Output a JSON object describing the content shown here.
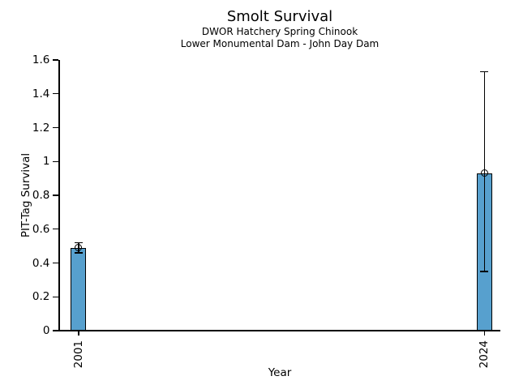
{
  "chart_data": {
    "type": "bar",
    "title": "Smolt Survival",
    "subtitle": [
      "DWOR Hatchery Spring Chinook",
      "Lower Monumental Dam - John Day Dam"
    ],
    "xlabel": "Year",
    "ylabel": "PIT-Tag Survival",
    "categories": [
      "2001",
      "2024"
    ],
    "x": [
      2001,
      2024
    ],
    "values": [
      0.49,
      0.93
    ],
    "error_low": [
      0.46,
      0.35
    ],
    "error_high": [
      0.52,
      1.53
    ],
    "marker": "open-circle",
    "ylim": [
      0,
      1.6
    ],
    "yticks": [
      0,
      0.2,
      0.4,
      0.6,
      0.8,
      1,
      1.2,
      1.4,
      1.6
    ],
    "ytick_labels": [
      "0",
      "0.2",
      "0.4",
      "0.6",
      "0.8",
      "1",
      "1.2",
      "1.4",
      "1.6"
    ],
    "xlim": [
      1999.9,
      2024.9
    ],
    "grid": false,
    "legend": null,
    "colors": {
      "bar_fill": "#57A0CE",
      "bar_edge": "#000000",
      "error": "#000000",
      "text": "#000000",
      "background": "#FFFFFF"
    }
  }
}
